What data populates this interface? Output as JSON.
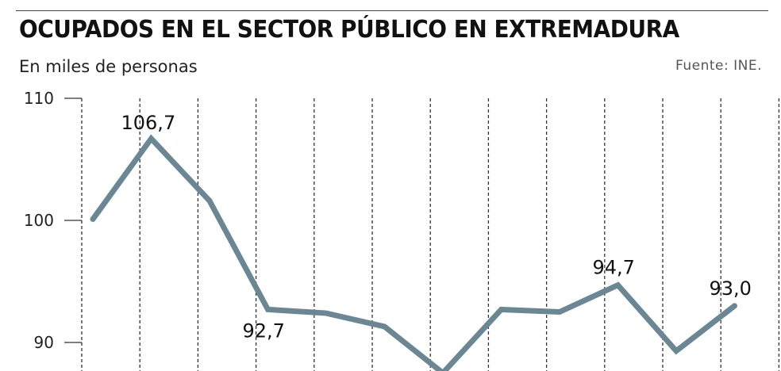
{
  "header": {
    "title": "OCUPADOS EN EL SECTOR PÚBLICO EN EXTREMADURA",
    "subtitle": "En miles de personas",
    "source": "Fuente: INE."
  },
  "chart_data": {
    "type": "line",
    "title": "OCUPADOS EN EL SECTOR PÚBLICO EN EXTREMADURA",
    "ylabel": "En miles de personas",
    "xlabel": "",
    "ylim": [
      87,
      110
    ],
    "yticks": [
      "110",
      "100",
      "90"
    ],
    "ytick_values": [
      110,
      100,
      90
    ],
    "grid": "vertical dashed",
    "series": [
      {
        "values": [
          100.1,
          106.7,
          101.6,
          92.7,
          92.4,
          91.3,
          87.5,
          92.7,
          92.5,
          94.7,
          89.3,
          93.0
        ],
        "color": "#6b8793"
      }
    ],
    "data_labels": [
      {
        "index": 1,
        "text": "106,7"
      },
      {
        "index": 3,
        "text": "92,7"
      },
      {
        "index": 9,
        "text": "94,7"
      },
      {
        "index": 11,
        "text": "93,0"
      }
    ]
  }
}
